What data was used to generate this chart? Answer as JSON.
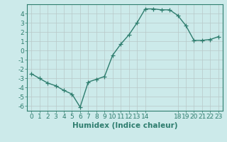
{
  "x": [
    0,
    1,
    2,
    3,
    4,
    5,
    6,
    7,
    8,
    9,
    10,
    11,
    12,
    13,
    14,
    15,
    16,
    17,
    18,
    19,
    20,
    21,
    22,
    23
  ],
  "y": [
    -2.5,
    -3.0,
    -3.5,
    -3.8,
    -4.3,
    -4.7,
    -6.1,
    -3.4,
    -3.1,
    -2.8,
    -0.5,
    0.7,
    1.7,
    3.0,
    4.5,
    4.5,
    4.4,
    4.4,
    3.8,
    2.7,
    1.1,
    1.1,
    1.2,
    1.5
  ],
  "line_color": "#2e7d6e",
  "marker": "+",
  "marker_size": 4,
  "bg_color": "#cceaea",
  "grid_color": "#b8c8c8",
  "xlabel": "Humidex (Indice chaleur)",
  "ylabel": "",
  "xlim": [
    -0.5,
    23.5
  ],
  "ylim": [
    -6.5,
    5.0
  ],
  "yticks": [
    -6,
    -5,
    -4,
    -3,
    -2,
    -1,
    0,
    1,
    2,
    3,
    4
  ],
  "xticks": [
    0,
    1,
    2,
    3,
    4,
    5,
    6,
    7,
    8,
    9,
    10,
    11,
    12,
    13,
    14,
    18,
    19,
    20,
    21,
    22,
    23
  ],
  "xtick_labels": [
    "0",
    "1",
    "2",
    "3",
    "4",
    "5",
    "6",
    "7",
    "8",
    "9",
    "10",
    "11",
    "12",
    "13",
    "14",
    "18",
    "19",
    "20",
    "21",
    "22",
    "23"
  ],
  "tick_color": "#2e7d6e",
  "axis_color": "#2e7d6e",
  "font_size": 6.5,
  "xlabel_fontsize": 7.5,
  "linewidth": 1.0,
  "markeredgewidth": 0.9
}
